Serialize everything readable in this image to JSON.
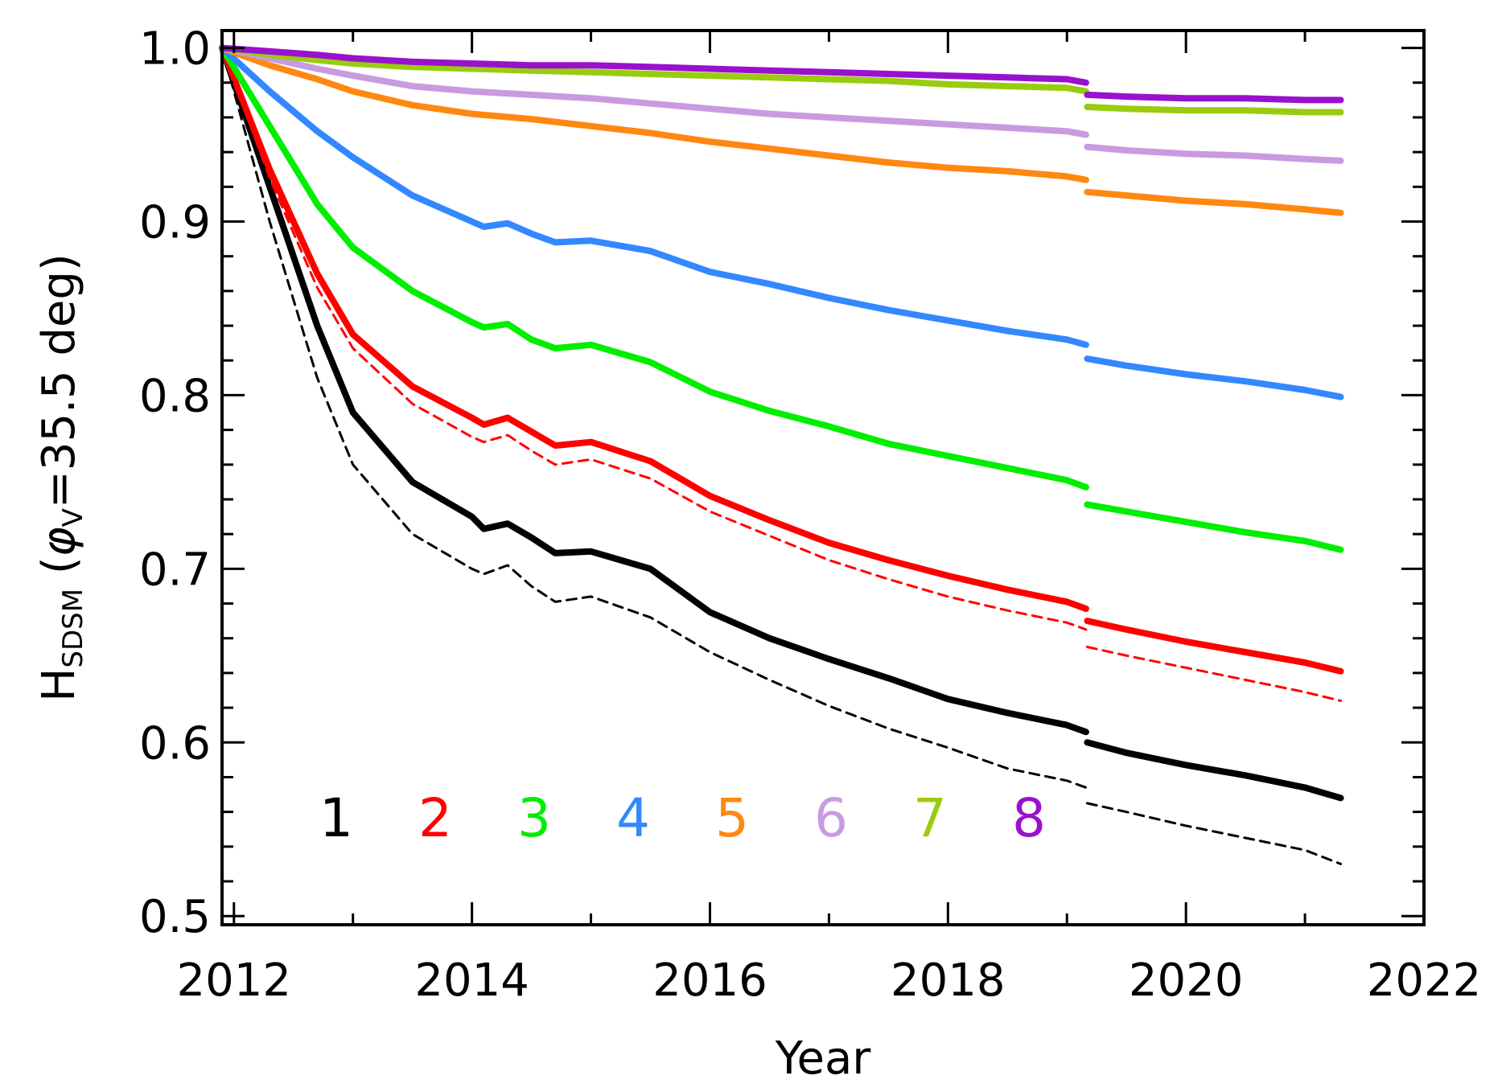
{
  "chart_data": {
    "type": "line",
    "title": "",
    "xlabel": "Year",
    "ylabel": {
      "main": "H",
      "subscript_main": "SDSM",
      "open": " (",
      "phi": "φ",
      "subscript_phi": "V",
      "rest": "=35.5 deg)"
    },
    "xlim": [
      2011.9,
      2022.0
    ],
    "ylim": [
      0.495,
      1.01
    ],
    "xticks": [
      2012,
      2014,
      2016,
      2018,
      2020,
      2022
    ],
    "xtick_labels": [
      "2012",
      "2014",
      "2016",
      "2018",
      "2020",
      "2022"
    ],
    "yticks": [
      0.5,
      0.6,
      0.7,
      0.8,
      0.9,
      1.0
    ],
    "ytick_labels": [
      "0.5",
      "0.6",
      "0.7",
      "0.8",
      "0.9",
      "1.0"
    ],
    "grid": false,
    "legend_position": "bottom-left",
    "series": [
      {
        "name": "1",
        "color": "#000000",
        "style": "solid",
        "x": [
          2011.9,
          2012.3,
          2012.7,
          2013.0,
          2013.5,
          2014.0,
          2014.1,
          2014.3,
          2014.5,
          2014.7,
          2015.0,
          2015.5,
          2016.0,
          2016.5,
          2017.0,
          2017.5,
          2018.0,
          2018.5,
          2019.0,
          2019.16,
          2019.17,
          2019.5,
          2020.0,
          2020.5,
          2021.0,
          2021.3
        ],
        "values": [
          1.0,
          0.92,
          0.84,
          0.79,
          0.75,
          0.73,
          0.723,
          0.726,
          0.718,
          0.709,
          0.71,
          0.7,
          0.675,
          0.66,
          0.648,
          0.637,
          0.625,
          0.617,
          0.61,
          0.606,
          0.6,
          0.594,
          0.587,
          0.581,
          0.574,
          0.568
        ]
      },
      {
        "name": "1 (dashed)",
        "color": "#000000",
        "style": "dashed",
        "x": [
          2011.9,
          2012.3,
          2012.7,
          2013.0,
          2013.5,
          2014.0,
          2014.1,
          2014.3,
          2014.5,
          2014.7,
          2015.0,
          2015.5,
          2016.0,
          2016.5,
          2017.0,
          2017.5,
          2018.0,
          2018.5,
          2019.0,
          2019.16,
          2019.17,
          2019.5,
          2020.0,
          2020.5,
          2021.0,
          2021.3
        ],
        "values": [
          1.0,
          0.9,
          0.81,
          0.76,
          0.72,
          0.7,
          0.697,
          0.702,
          0.69,
          0.681,
          0.684,
          0.672,
          0.652,
          0.636,
          0.621,
          0.608,
          0.597,
          0.585,
          0.578,
          0.574,
          0.565,
          0.56,
          0.552,
          0.545,
          0.538,
          0.53
        ]
      },
      {
        "name": "2",
        "color": "#ff0000",
        "style": "solid",
        "x": [
          2011.9,
          2012.3,
          2012.7,
          2013.0,
          2013.5,
          2014.0,
          2014.1,
          2014.3,
          2014.5,
          2014.7,
          2015.0,
          2015.5,
          2016.0,
          2016.5,
          2017.0,
          2017.5,
          2018.0,
          2018.5,
          2019.0,
          2019.16,
          2019.17,
          2019.5,
          2020.0,
          2020.5,
          2021.0,
          2021.3
        ],
        "values": [
          1.0,
          0.93,
          0.87,
          0.835,
          0.805,
          0.787,
          0.783,
          0.787,
          0.779,
          0.771,
          0.773,
          0.762,
          0.742,
          0.728,
          0.715,
          0.705,
          0.696,
          0.688,
          0.681,
          0.677,
          0.67,
          0.665,
          0.658,
          0.652,
          0.646,
          0.641
        ]
      },
      {
        "name": "2 (dashed)",
        "color": "#ff0000",
        "style": "dashed",
        "x": [
          2011.9,
          2012.3,
          2012.7,
          2013.0,
          2013.5,
          2014.0,
          2014.1,
          2014.3,
          2014.5,
          2014.7,
          2015.0,
          2015.5,
          2016.0,
          2016.5,
          2017.0,
          2017.5,
          2018.0,
          2018.5,
          2019.0,
          2019.16,
          2019.17,
          2019.5,
          2020.0,
          2020.5,
          2021.0,
          2021.3
        ],
        "values": [
          1.0,
          0.925,
          0.862,
          0.827,
          0.795,
          0.776,
          0.773,
          0.777,
          0.768,
          0.76,
          0.763,
          0.752,
          0.733,
          0.719,
          0.705,
          0.694,
          0.684,
          0.676,
          0.669,
          0.665,
          0.655,
          0.65,
          0.643,
          0.636,
          0.629,
          0.624
        ]
      },
      {
        "name": "3",
        "color": "#00ee00",
        "style": "solid",
        "x": [
          2011.9,
          2012.3,
          2012.7,
          2013.0,
          2013.5,
          2014.0,
          2014.1,
          2014.3,
          2014.5,
          2014.7,
          2015.0,
          2015.5,
          2016.0,
          2016.5,
          2017.0,
          2017.5,
          2018.0,
          2018.5,
          2019.0,
          2019.16,
          2019.17,
          2019.5,
          2020.0,
          2020.5,
          2021.0,
          2021.3
        ],
        "values": [
          1.0,
          0.955,
          0.91,
          0.885,
          0.86,
          0.842,
          0.839,
          0.841,
          0.832,
          0.827,
          0.829,
          0.819,
          0.802,
          0.791,
          0.782,
          0.772,
          0.765,
          0.758,
          0.751,
          0.747,
          0.737,
          0.733,
          0.727,
          0.721,
          0.716,
          0.711
        ]
      },
      {
        "name": "4",
        "color": "#3388ff",
        "style": "solid",
        "x": [
          2011.9,
          2012.3,
          2012.7,
          2013.0,
          2013.5,
          2014.0,
          2014.1,
          2014.3,
          2014.5,
          2014.7,
          2015.0,
          2015.5,
          2016.0,
          2016.5,
          2017.0,
          2017.5,
          2018.0,
          2018.5,
          2019.0,
          2019.16,
          2019.17,
          2019.5,
          2020.0,
          2020.5,
          2021.0,
          2021.3
        ],
        "values": [
          1.0,
          0.975,
          0.952,
          0.937,
          0.915,
          0.9,
          0.897,
          0.899,
          0.893,
          0.888,
          0.889,
          0.883,
          0.871,
          0.864,
          0.856,
          0.849,
          0.843,
          0.837,
          0.832,
          0.829,
          0.821,
          0.817,
          0.812,
          0.808,
          0.803,
          0.799
        ]
      },
      {
        "name": "5",
        "color": "#ff8811",
        "style": "solid",
        "x": [
          2011.9,
          2012.3,
          2012.7,
          2013.0,
          2013.5,
          2014.0,
          2014.5,
          2015.0,
          2015.5,
          2016.0,
          2016.5,
          2017.0,
          2017.5,
          2018.0,
          2018.5,
          2019.0,
          2019.16,
          2019.17,
          2019.5,
          2020.0,
          2020.5,
          2021.0,
          2021.3
        ],
        "values": [
          1.0,
          0.99,
          0.982,
          0.975,
          0.967,
          0.962,
          0.959,
          0.955,
          0.951,
          0.946,
          0.942,
          0.938,
          0.934,
          0.931,
          0.929,
          0.926,
          0.924,
          0.917,
          0.915,
          0.912,
          0.91,
          0.907,
          0.905
        ]
      },
      {
        "name": "6",
        "color": "#c89be0",
        "style": "solid",
        "x": [
          2011.9,
          2012.3,
          2012.7,
          2013.0,
          2013.5,
          2014.0,
          2014.5,
          2015.0,
          2015.5,
          2016.0,
          2016.5,
          2017.0,
          2017.5,
          2018.0,
          2018.5,
          2019.0,
          2019.16,
          2019.17,
          2019.5,
          2020.0,
          2020.5,
          2021.0,
          2021.3
        ],
        "values": [
          1.0,
          0.994,
          0.988,
          0.984,
          0.978,
          0.975,
          0.973,
          0.971,
          0.968,
          0.965,
          0.962,
          0.96,
          0.958,
          0.956,
          0.954,
          0.952,
          0.95,
          0.943,
          0.941,
          0.939,
          0.938,
          0.936,
          0.935
        ]
      },
      {
        "name": "7",
        "color": "#99cc11",
        "style": "solid",
        "x": [
          2011.9,
          2012.3,
          2012.7,
          2013.0,
          2013.5,
          2014.0,
          2014.5,
          2015.0,
          2015.5,
          2016.0,
          2016.5,
          2017.0,
          2017.5,
          2018.0,
          2018.5,
          2019.0,
          2019.16,
          2019.17,
          2019.5,
          2020.0,
          2020.5,
          2021.0,
          2021.3
        ],
        "values": [
          1.0,
          0.996,
          0.993,
          0.991,
          0.989,
          0.988,
          0.987,
          0.986,
          0.985,
          0.984,
          0.983,
          0.982,
          0.981,
          0.979,
          0.978,
          0.977,
          0.975,
          0.966,
          0.965,
          0.964,
          0.964,
          0.963,
          0.963
        ]
      },
      {
        "name": "8",
        "color": "#9911cc",
        "style": "solid",
        "x": [
          2011.9,
          2012.3,
          2012.7,
          2013.0,
          2013.5,
          2014.0,
          2014.5,
          2015.0,
          2015.5,
          2016.0,
          2016.5,
          2017.0,
          2017.5,
          2018.0,
          2018.5,
          2019.0,
          2019.16,
          2019.17,
          2019.5,
          2020.0,
          2020.5,
          2021.0,
          2021.3
        ],
        "values": [
          1.0,
          0.998,
          0.996,
          0.994,
          0.992,
          0.991,
          0.99,
          0.99,
          0.989,
          0.988,
          0.987,
          0.986,
          0.985,
          0.984,
          0.983,
          0.982,
          0.98,
          0.973,
          0.972,
          0.971,
          0.971,
          0.97,
          0.97
        ]
      }
    ],
    "legend": [
      {
        "label": "1",
        "color": "#000000"
      },
      {
        "label": "2",
        "color": "#ff0000"
      },
      {
        "label": "3",
        "color": "#00ee00"
      },
      {
        "label": "4",
        "color": "#3388ff"
      },
      {
        "label": "5",
        "color": "#ff8811"
      },
      {
        "label": "6",
        "color": "#c89be0"
      },
      {
        "label": "7",
        "color": "#99cc11"
      },
      {
        "label": "8",
        "color": "#9911cc"
      }
    ]
  }
}
